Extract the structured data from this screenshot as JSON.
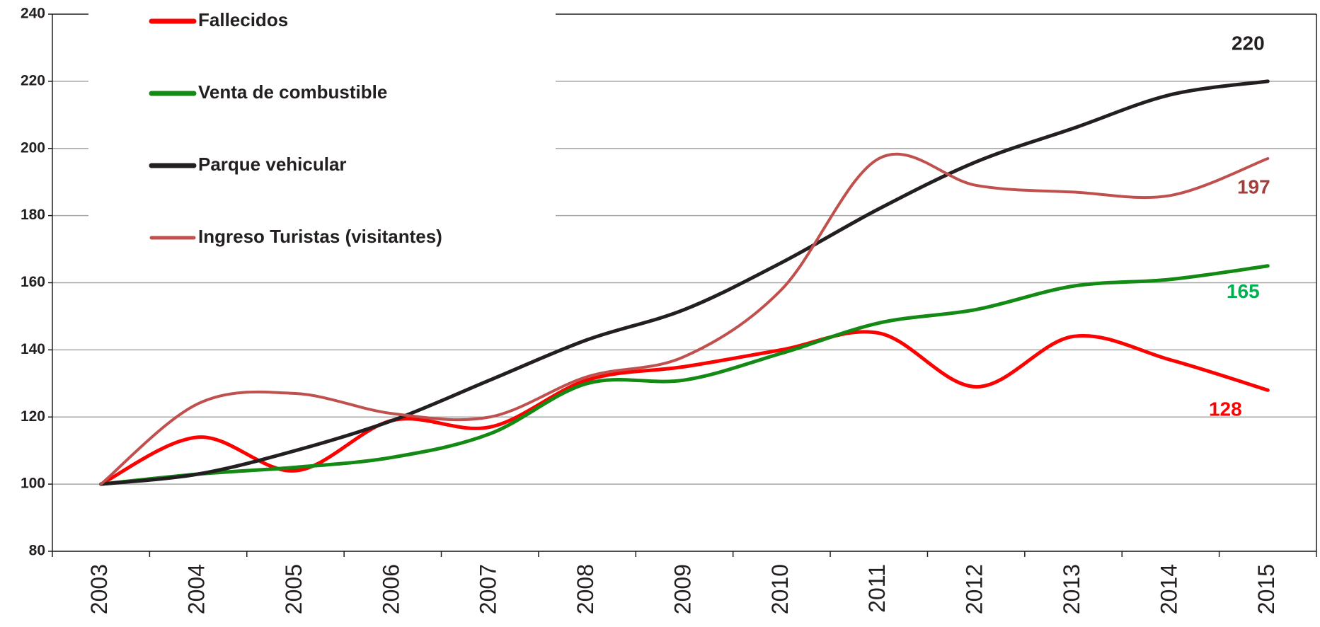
{
  "chart_data": {
    "type": "line",
    "categories": [
      "2003",
      "2004",
      "2005",
      "2006",
      "2007",
      "2008",
      "2009",
      "2010",
      "2011",
      "2012",
      "2013",
      "2014",
      "2015"
    ],
    "series": [
      {
        "name": "Fallecidos",
        "color": "#ff0000",
        "label_color": "#ff0000",
        "values": [
          100,
          114,
          104,
          119,
          117,
          131,
          135,
          140,
          145,
          129,
          144,
          137,
          128
        ]
      },
      {
        "name": "Venta de combustible",
        "color": "#138a13",
        "label_color": "#00b050",
        "values": [
          100,
          103,
          105,
          108,
          115,
          130,
          131,
          139,
          148,
          152,
          159,
          161,
          165
        ]
      },
      {
        "name": "Parque vehicular",
        "color": "#231f20",
        "label_color": "#231f20",
        "values": [
          100,
          103,
          110,
          119,
          131,
          143,
          152,
          166,
          182,
          196,
          206,
          216,
          220
        ]
      },
      {
        "name": "Ingreso Turistas (visitantes)",
        "color": "#c0504d",
        "label_color": "#a0403d",
        "values": [
          100,
          124,
          127,
          121,
          120,
          132,
          138,
          158,
          197,
          189,
          187,
          186,
          197
        ]
      }
    ],
    "ylim": [
      80,
      240
    ],
    "yticks": [
      80,
      100,
      120,
      140,
      160,
      180,
      200,
      220,
      240
    ],
    "grid": true
  }
}
